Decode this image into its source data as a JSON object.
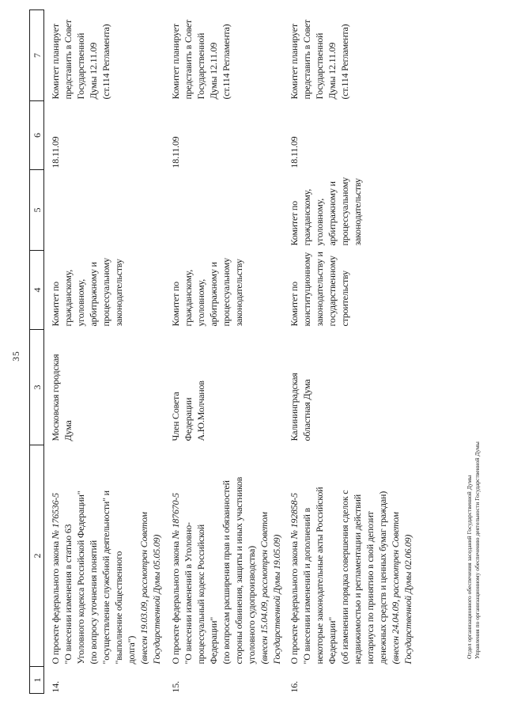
{
  "page": {
    "number": "35",
    "footer_lines": [
      "Отдел организационного обеспечения заседаний Государственной Думы",
      "Управления по организационному обеспечению деятельности Государственной Думы"
    ]
  },
  "table": {
    "header_cols": [
      "1",
      "2",
      "3",
      "4",
      "5",
      "6",
      "7"
    ],
    "rows": [
      {
        "num": "14.",
        "bill": {
          "intro": "О проекте федерального закона ",
          "number": "№ 176536-5",
          "lines": [
            "\"О внесении изменения в статью 63",
            "Уголовного кодекса Российской Федерации\"",
            "(по вопросу уточнения понятий",
            "\"осуществление служебной деятельности\" и",
            "\"выполнение общественного",
            "долга\")"
          ],
          "italic_lines": [
            "(внесен 19.03.09, рассмотрен Советом",
            "Государственной Думы 05.05.09)"
          ]
        },
        "initiator_lines": [
          "Московская городская",
          "Дума"
        ],
        "committee_lines": [
          "Комитет по",
          "гражданскому,",
          "уголовному,",
          "арбитражному и",
          "процессуальному",
          "законодательству"
        ],
        "co_committee_lines": [],
        "date": "18.11.09",
        "plan_lines": [
          "Комитет планирует",
          "представить в Совет",
          "Государственной",
          "Думы 12.11.09",
          "(ст.114 Регламента)"
        ]
      },
      {
        "num": "15.",
        "bill": {
          "intro": "О проекте федерального закона ",
          "number": "№ 187670-5",
          "lines": [
            "\"О внесении изменений в Уголовно-",
            "процессуальный кодекс Российской",
            "Федерации\"",
            "(по вопросам расширения прав и обязанностей",
            "стороны обвинения, защиты и иных участников",
            "уголовного судопроизводства)"
          ],
          "italic_lines": [
            "(внесен 15.04.09, рассмотрен Советом",
            "Государственной Думы 19.05.09)"
          ]
        },
        "initiator_lines": [
          "Член Совета",
          "Федерации",
          "А.Ю.Молчанов"
        ],
        "committee_lines": [
          "Комитет по",
          "гражданскому,",
          "уголовному,",
          "арбитражному и",
          "процессуальному",
          "законодательству"
        ],
        "co_committee_lines": [],
        "date": "18.11.09",
        "plan_lines": [
          "Комитет планирует",
          "представить в Совет",
          "Государственной",
          "Думы 12.11.09",
          "(ст.114 Регламента)"
        ]
      },
      {
        "num": "16.",
        "bill": {
          "intro": "О проекте федерального закона ",
          "number": "№ 192858-5",
          "lines": [
            "\"О внесении изменений и дополнений в",
            "некоторые законодательные акты Российской",
            "Федерации\"",
            "(об изменении порядка совершения сделок с",
            "недвижимостью и регламентации действий",
            "нотариуса по принятию в свой депозит",
            "денежных средств и ценных бумаг граждан)"
          ],
          "italic_lines": [
            "(внесен 24.04.09, рассмотрен Советом",
            "Государственной Думы 02.06.09)"
          ]
        },
        "initiator_lines": [
          "Калининградская",
          "областная Дума"
        ],
        "committee_lines": [
          "Комитет по",
          "конституционному",
          "законодательству и",
          "государственному",
          "строительству"
        ],
        "co_committee_lines": [
          "Комитет по",
          "гражданскому,",
          "уголовному,",
          "арбитражному и",
          "процессуальному",
          "законодательству"
        ],
        "date": "18.11.09",
        "plan_lines": [
          "Комитет планирует",
          "представить в Совет",
          "Государственной",
          "Думы 12.11.09",
          "(ст.114 Регламента)"
        ]
      }
    ]
  }
}
